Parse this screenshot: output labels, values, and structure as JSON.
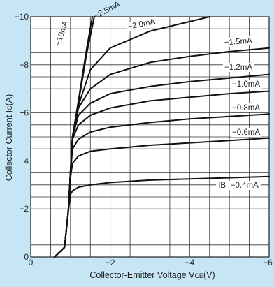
{
  "chart_data": {
    "type": "line",
    "title": "",
    "xlabel": "Collector-Emitter Voltage V",
    "xlabel_sub": "CE",
    "xlabel_unit": "(V)",
    "ylabel": "Collector Current I",
    "ylabel_sub": "C",
    "ylabel_unit": "(A)",
    "xlim": [
      0,
      -6
    ],
    "ylim": [
      0,
      -10
    ],
    "x_ticks": [
      {
        "value": 0,
        "label": "0"
      },
      {
        "value": -2,
        "label": "−2"
      },
      {
        "value": -4,
        "label": "−4"
      },
      {
        "value": -6,
        "label": "−6"
      }
    ],
    "y_ticks": [
      {
        "value": 0,
        "label": "0"
      },
      {
        "value": -2,
        "label": "−2"
      },
      {
        "value": -4,
        "label": "−4"
      },
      {
        "value": -6,
        "label": "−6"
      },
      {
        "value": -8,
        "label": "−8"
      },
      {
        "value": -10,
        "label": "−10"
      }
    ],
    "grid": true,
    "grid_minor_x_step": -0.5,
    "grid_minor_y_step": -0.5,
    "series": [
      {
        "name": "−10mA",
        "label": "−10mA",
        "x": [
          -0.6,
          -0.85,
          -0.95,
          -1.0,
          -1.05,
          -1.2,
          -1.4,
          -1.55
        ],
        "y": [
          0,
          -0.4,
          -2.0,
          -3.5,
          -5.0,
          -6.5,
          -8.6,
          -10.0
        ]
      },
      {
        "name": "−2.5mA",
        "label": "−2.5mA",
        "x": [
          -0.6,
          -0.85,
          -0.95,
          -1.0,
          -1.05,
          -1.2,
          -1.4,
          -1.6
        ],
        "y": [
          0,
          -0.4,
          -2.0,
          -3.5,
          -5.0,
          -6.4,
          -8.4,
          -10.0
        ]
      },
      {
        "name": "−2.0mA",
        "label": "−2.0mA",
        "x": [
          -0.6,
          -0.85,
          -0.95,
          -1.0,
          -1.05,
          -1.2,
          -1.5,
          -2.0,
          -3.0,
          -4.5
        ],
        "y": [
          0,
          -0.4,
          -2.0,
          -3.5,
          -5.0,
          -6.3,
          -7.8,
          -8.7,
          -9.4,
          -10.0
        ]
      },
      {
        "name": "−1.5mA",
        "label": "−1.5mA",
        "x": [
          -0.6,
          -0.85,
          -0.95,
          -1.0,
          -1.05,
          -1.2,
          -1.5,
          -2.0,
          -3.0,
          -4.0,
          -5.0,
          -6.0
        ],
        "y": [
          0,
          -0.4,
          -2.0,
          -3.5,
          -5.0,
          -6.2,
          -7.0,
          -7.6,
          -8.1,
          -8.35,
          -8.55,
          -8.7
        ]
      },
      {
        "name": "−1.2mA",
        "label": "−1.2mA",
        "x": [
          -0.6,
          -0.85,
          -0.95,
          -1.0,
          -1.05,
          -1.2,
          -1.5,
          -2.0,
          -3.0,
          -4.0,
          -5.0,
          -6.0
        ],
        "y": [
          0,
          -0.4,
          -2.0,
          -3.5,
          -5.0,
          -5.9,
          -6.4,
          -6.8,
          -7.1,
          -7.3,
          -7.45,
          -7.6
        ]
      },
      {
        "name": "−1.0mA",
        "label": "−1.0mA",
        "x": [
          -0.6,
          -0.85,
          -0.95,
          -1.0,
          -1.05,
          -1.2,
          -1.5,
          -2.0,
          -3.0,
          -4.0,
          -5.0,
          -6.0
        ],
        "y": [
          0,
          -0.4,
          -2.0,
          -3.5,
          -4.9,
          -5.5,
          -5.9,
          -6.2,
          -6.5,
          -6.65,
          -6.8,
          -6.9
        ]
      },
      {
        "name": "−0.8mA",
        "label": "−0.8mA",
        "x": [
          -0.6,
          -0.85,
          -0.95,
          -1.0,
          -1.05,
          -1.2,
          -1.5,
          -2.0,
          -3.0,
          -4.0,
          -5.0,
          -6.0
        ],
        "y": [
          0,
          -0.4,
          -2.0,
          -3.5,
          -4.5,
          -4.9,
          -5.2,
          -5.4,
          -5.6,
          -5.75,
          -5.85,
          -5.95
        ]
      },
      {
        "name": "−0.6mA",
        "label": "−0.6mA",
        "x": [
          -0.6,
          -0.85,
          -0.95,
          -1.0,
          -1.05,
          -1.2,
          -1.5,
          -2.0,
          -3.0,
          -4.0,
          -5.0,
          -6.0
        ],
        "y": [
          0,
          -0.4,
          -2.0,
          -3.3,
          -3.9,
          -4.2,
          -4.4,
          -4.5,
          -4.65,
          -4.75,
          -4.85,
          -4.95
        ]
      },
      {
        "name": "IB=−0.4mA",
        "label": "IB=−0.4mA",
        "x": [
          -0.6,
          -0.85,
          -0.95,
          -1.0,
          -1.05,
          -1.2,
          -1.5,
          -2.0,
          -3.0,
          -4.0,
          -5.0,
          -6.0
        ],
        "y": [
          0,
          -0.4,
          -2.0,
          -2.6,
          -2.75,
          -2.9,
          -3.0,
          -3.1,
          -3.2,
          -3.25,
          -3.3,
          -3.35
        ]
      }
    ]
  }
}
